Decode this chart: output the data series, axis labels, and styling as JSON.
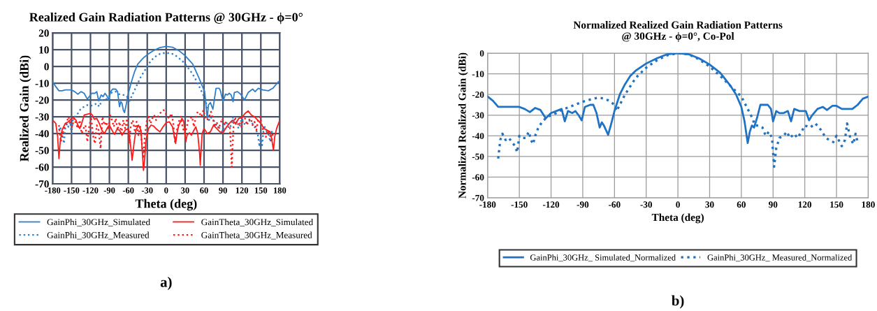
{
  "chart_data": [
    {
      "type": "line",
      "title": "Realized Gain Radiation Patterns @ 30GHz - ϕ=0°",
      "xlabel": "Theta (deg)",
      "ylabel": "Realized Gain (dBi)",
      "xlim": [
        -180,
        180
      ],
      "ylim": [
        -70,
        20
      ],
      "xticks": [
        -180,
        -150,
        -120,
        -90,
        -60,
        -30,
        0,
        30,
        60,
        90,
        120,
        150,
        180
      ],
      "yticks": [
        -70,
        -60,
        -50,
        -40,
        -30,
        -20,
        -10,
        0,
        10,
        20
      ],
      "grid": true,
      "legend": "bottom",
      "annotations": [
        "a)"
      ],
      "series": [
        {
          "name": "GainPhi_30GHz_Simulated",
          "color": "#2f7fc8",
          "line_style": "solid",
          "x": [
            -180,
            -175,
            -170,
            -165,
            -160,
            -155,
            -150,
            -145,
            -140,
            -135,
            -130,
            -125,
            -122,
            -118,
            -113,
            -110,
            -107,
            -103,
            -100,
            -97,
            -94,
            -91,
            -88,
            -85,
            -80,
            -77,
            -74,
            -72,
            -70,
            -68,
            -66,
            -63,
            -60,
            -55,
            -50,
            -45,
            -40,
            -35,
            -30,
            -20,
            -10,
            0,
            10,
            20,
            30,
            42,
            51,
            61,
            65,
            67,
            70,
            74,
            79,
            84,
            86,
            90,
            94,
            97,
            100,
            103,
            106,
            108,
            113,
            118,
            124,
            130,
            137,
            141,
            146,
            153,
            162,
            169,
            178,
            180
          ],
          "values": [
            -9,
            -12,
            -14.5,
            -14.5,
            -14,
            -14,
            -14,
            -15,
            -16.5,
            -15,
            -16,
            -19.5,
            -18,
            -16,
            -16,
            -15,
            -20.5,
            -17,
            -18,
            -16,
            -17.5,
            -20,
            -15,
            -13.5,
            -13.5,
            -15,
            -24,
            -21,
            -22,
            -26,
            -27.5,
            -22,
            -16,
            -9,
            -3,
            1.5,
            3.5,
            5.5,
            7,
            9.5,
            11.3,
            12,
            11.5,
            9.5,
            6.5,
            1.5,
            -6,
            -15,
            -31,
            -23,
            -21.5,
            -25.5,
            -13,
            -13,
            -14.5,
            -21,
            -16.5,
            -17,
            -16,
            -17,
            -21,
            -15.5,
            -15,
            -16.5,
            -20,
            -15.5,
            -13.5,
            -15,
            -13,
            -14,
            -14.5,
            -13,
            -9,
            -9
          ]
        },
        {
          "name": "GainPhi_30GHz_Measured",
          "color": "#2f7fc8",
          "line_style": "dotted",
          "x": [
            -170,
            -168,
            -165,
            -162,
            -160,
            -157,
            -155,
            -152,
            -150,
            -148,
            -145,
            -140,
            -135,
            -130,
            -125,
            -120,
            -115,
            -110,
            -106,
            -102,
            -98,
            -92,
            -88,
            -84,
            -80,
            -75,
            -70,
            -65,
            -62,
            -58,
            -55,
            -50,
            -45,
            -40,
            -35,
            -30,
            -25,
            -20,
            -15,
            -10,
            -5,
            0,
            5,
            10,
            15,
            20,
            25,
            30,
            35,
            40,
            45,
            50,
            55,
            60,
            63,
            65,
            68,
            70,
            75,
            80,
            85,
            90,
            92,
            95,
            100,
            103,
            106,
            110,
            115,
            120,
            125,
            130,
            135,
            140,
            145,
            148,
            150,
            152,
            155,
            158,
            162,
            165,
            168
          ],
          "values": [
            -38,
            -36,
            -40,
            -46,
            -37,
            -34,
            -36,
            -33,
            -40,
            -32,
            -30,
            -28,
            -25,
            -24,
            -23,
            -23.5,
            -23,
            -22,
            -24,
            -20,
            -20,
            -19,
            -16,
            -15,
            -15,
            -16.5,
            -17,
            -17,
            -18,
            -20.5,
            -18,
            -14,
            -10,
            -6,
            -3,
            0,
            3,
            5,
            6.5,
            7.5,
            8,
            8,
            8,
            7.5,
            6.5,
            5,
            3.5,
            1.5,
            -1,
            -3.5,
            -6.5,
            -10,
            -14,
            -18,
            -21,
            -27,
            -32,
            -30,
            -32,
            -35,
            -37,
            -39,
            -35,
            -33,
            -37,
            -35,
            -30,
            -34,
            -37,
            -31,
            -35,
            -32,
            -33,
            -36,
            -40,
            -48,
            -42,
            -47,
            -35,
            -38,
            -40,
            -45,
            -38
          ]
        },
        {
          "name": "GainTheta_30GHz_Simulated",
          "color": "#ff1a1a",
          "line_style": "solid",
          "x": [
            -180,
            -175,
            -172,
            -170,
            -168,
            -165,
            -160,
            -155,
            -150,
            -147,
            -143,
            -140,
            -137,
            -134,
            -130,
            -125,
            -120,
            -117,
            -114,
            -110,
            -106,
            -102,
            -98,
            -93,
            -90,
            -86,
            -82,
            -78,
            -74,
            -70,
            -65,
            -60,
            -57,
            -54,
            -51,
            -48,
            -44,
            -40,
            -38,
            -36,
            -34,
            -32,
            -28,
            -24,
            -20,
            -15,
            -10,
            -5,
            0,
            5,
            10,
            13,
            15,
            17,
            20,
            25,
            28,
            31,
            33,
            37,
            40,
            44,
            47,
            50,
            53,
            54,
            55,
            57,
            60,
            65,
            70,
            75,
            80,
            85,
            90,
            95,
            100,
            105,
            110,
            115,
            120,
            125,
            130,
            135,
            140,
            145,
            150,
            155,
            160,
            165,
            168,
            170,
            172,
            175,
            180
          ],
          "values": [
            -32,
            -34,
            -42,
            -55,
            -45,
            -38,
            -34,
            -33,
            -31,
            -30.5,
            -32,
            -35,
            -37,
            -34,
            -29,
            -28.5,
            -28,
            -29,
            -31.5,
            -31,
            -34,
            -38,
            -40,
            -36.5,
            -35,
            -38,
            -40.5,
            -37.5,
            -38,
            -41,
            -38,
            -37,
            -45,
            -56,
            -46,
            -38,
            -35,
            -38,
            -50,
            -62,
            -55,
            -44,
            -37,
            -35,
            -35.5,
            -37.5,
            -39,
            -36,
            -33.5,
            -33,
            -36,
            -42,
            -46,
            -40,
            -35,
            -31,
            -33,
            -45,
            -41,
            -39.5,
            -41,
            -38,
            -36,
            -40,
            -52,
            -59,
            -52,
            -40,
            -37,
            -40,
            -39,
            -35,
            -37,
            -39,
            -39.5,
            -36.5,
            -34,
            -32,
            -34,
            -31,
            -30.5,
            -28,
            -26.5,
            -29,
            -30,
            -32,
            -34,
            -37,
            -38,
            -39,
            -45,
            -50,
            -42,
            -37,
            -32
          ]
        },
        {
          "name": "GainTheta_30GHz_Measured",
          "color": "#ff1a1a",
          "line_style": "dotted",
          "x": [
            -170,
            -167,
            -164,
            -161,
            -158,
            -155,
            -152,
            -149,
            -146,
            -143,
            -140,
            -137,
            -134,
            -131,
            -128,
            -125,
            -122,
            -119,
            -116,
            -113,
            -110,
            -107,
            -104,
            -101,
            -98,
            -95,
            -92,
            -89,
            -86,
            -83,
            -80,
            -77,
            -74,
            -71,
            -68,
            -65,
            -62,
            -59,
            -56,
            -53,
            -50,
            -47,
            -44,
            -41,
            -38,
            -36,
            -34,
            -31,
            -28,
            -25,
            -22,
            -19,
            -16,
            -13,
            -10,
            -7,
            -4,
            -1,
            2,
            5,
            8,
            11,
            14,
            17,
            20,
            23,
            26,
            29,
            32,
            35,
            38,
            41,
            44,
            47,
            50,
            53,
            56,
            59,
            62,
            65,
            68,
            71,
            74,
            77,
            80,
            83,
            86,
            89,
            92,
            95,
            98,
            101,
            103,
            104,
            105,
            107,
            110,
            113,
            116,
            119,
            122,
            125,
            128,
            131,
            134,
            137,
            140,
            143,
            146,
            149,
            152,
            155,
            158,
            161,
            164,
            167,
            169
          ],
          "values": [
            -35,
            -45,
            -40,
            -36,
            -34,
            -30,
            -33,
            -36,
            -31,
            -34,
            -37,
            -32,
            -40,
            -37,
            -35,
            -45,
            -36,
            -30,
            -41,
            -46,
            -35,
            -38,
            -49,
            -30,
            -35,
            -33,
            -38,
            -29,
            -32,
            -36,
            -31,
            -38,
            -33,
            -40,
            -32,
            -37,
            -31,
            -46,
            -35,
            -32,
            -38,
            -33,
            -41,
            -36,
            -48,
            -55,
            -42,
            -33,
            -30,
            -34,
            -31,
            -29,
            -32,
            -30,
            -28,
            -27,
            -26,
            -28,
            -30,
            -31,
            -28,
            -33,
            -45,
            -38,
            -33,
            -30,
            -36,
            -40,
            -37,
            -32,
            -31,
            -30,
            -36,
            -30,
            -27,
            -28,
            -30,
            -26,
            -31,
            -32,
            -30,
            -27,
            -31,
            -36,
            -33,
            -37,
            -34,
            -31,
            -35,
            -33,
            -34,
            -36,
            -52,
            -60,
            -50,
            -33,
            -31,
            -35,
            -33,
            -36,
            -32,
            -31,
            -35,
            -32,
            -31,
            -35,
            -33,
            -38,
            -31,
            -30,
            -36,
            -40,
            -42,
            -38,
            -40,
            -45,
            -40
          ]
        }
      ]
    },
    {
      "type": "line",
      "title": "Normalized Realized Gain Radiation Patterns\n@ 30GHz - ϕ=0°, Co-Pol",
      "xlabel": "Theta (deg)",
      "ylabel": "Normalized Realized Gain (dBi)",
      "xlim": [
        -180,
        180
      ],
      "ylim": [
        -70,
        0
      ],
      "xticks": [
        -180,
        -150,
        -120,
        -90,
        -60,
        -30,
        0,
        30,
        60,
        90,
        120,
        150,
        180
      ],
      "yticks": [
        -70,
        -60,
        -50,
        -40,
        -30,
        -20,
        -10,
        0
      ],
      "grid": true,
      "legend": "bottom",
      "annotations": [
        "b)"
      ],
      "series": [
        {
          "name": "GainPhi_30GHz_ Simulated_Normalized",
          "color": "#1f72c4",
          "line_style": "solid",
          "x": [
            -180,
            -175,
            -170,
            -165,
            -160,
            -155,
            -150,
            -145,
            -140,
            -135,
            -130,
            -125,
            -120,
            -115,
            -110,
            -107,
            -104,
            -100,
            -97,
            -94,
            -91,
            -88,
            -83,
            -80,
            -77,
            -74,
            -72,
            -70,
            -66,
            -63,
            -60,
            -55,
            -50,
            -45,
            -40,
            -30,
            -20,
            -10,
            0,
            10,
            20,
            30,
            40,
            50,
            55,
            60,
            63,
            66,
            68,
            70,
            72,
            75,
            78,
            85,
            88,
            90,
            93,
            96,
            100,
            104,
            107,
            110,
            115,
            118,
            121,
            124,
            127,
            132,
            137,
            141,
            146,
            150,
            155,
            160,
            165,
            170,
            175,
            180
          ],
          "values": [
            -21,
            -23,
            -26,
            -26,
            -26,
            -26,
            -26,
            -27,
            -28.5,
            -26.5,
            -27.5,
            -31.5,
            -29,
            -28,
            -27,
            -33,
            -28,
            -29,
            -28,
            -30,
            -32.5,
            -26,
            -25,
            -25,
            -29,
            -36,
            -33.5,
            -35,
            -39.5,
            -34,
            -28,
            -20,
            -15,
            -11,
            -8.5,
            -5,
            -2.5,
            -0.5,
            0,
            -0.5,
            -2.5,
            -5.5,
            -9.5,
            -16,
            -20,
            -26,
            -33,
            -43.5,
            -38,
            -35,
            -36,
            -31,
            -25,
            -25,
            -27,
            -33,
            -28,
            -29,
            -29,
            -28,
            -33,
            -27,
            -28,
            -28,
            -28,
            -32.5,
            -30,
            -27,
            -26,
            -27.5,
            -25.5,
            -25.5,
            -27,
            -27,
            -27,
            -25,
            -22,
            -21
          ]
        },
        {
          "name": "GainPhi_30GHz_ Measured_Normalized",
          "color": "#1f72c4",
          "line_style": "dotted",
          "x": [
            -170,
            -168,
            -166,
            -163,
            -160,
            -157,
            -154,
            -152,
            -150,
            -147,
            -144,
            -141,
            -139,
            -137,
            -135,
            -132,
            -128,
            -124,
            -120,
            -115,
            -110,
            -100,
            -90,
            -80,
            -75,
            -70,
            -65,
            -60,
            -58,
            -55,
            -50,
            -40,
            -30,
            -20,
            -10,
            0,
            10,
            20,
            30,
            40,
            50,
            60,
            65,
            70,
            73,
            76,
            80,
            83,
            86,
            89,
            91,
            93,
            96,
            100,
            103,
            106,
            110,
            113,
            117,
            120,
            125,
            130,
            135,
            140,
            143,
            147,
            150,
            155,
            158,
            160,
            163,
            166,
            168,
            170
          ],
          "values": [
            -51,
            -42,
            -39,
            -42,
            -41,
            -43,
            -45,
            -48,
            -40,
            -41,
            -41,
            -38,
            -42,
            -44,
            -40,
            -36,
            -33,
            -31,
            -30,
            -29,
            -27.5,
            -25.5,
            -23.5,
            -22,
            -21.5,
            -22,
            -23,
            -25,
            -28,
            -25,
            -20,
            -12,
            -7,
            -3.5,
            -1,
            0,
            -0.5,
            -3,
            -6.5,
            -11,
            -16,
            -21,
            -26,
            -31,
            -35,
            -35,
            -36,
            -40,
            -38,
            -41,
            -55,
            -46,
            -41,
            -40,
            -38,
            -41,
            -39,
            -41,
            -38,
            -35,
            -36,
            -34,
            -37,
            -41,
            -42,
            -43,
            -40,
            -45,
            -42,
            -34,
            -41,
            -44,
            -39,
            -43
          ]
        }
      ]
    }
  ]
}
